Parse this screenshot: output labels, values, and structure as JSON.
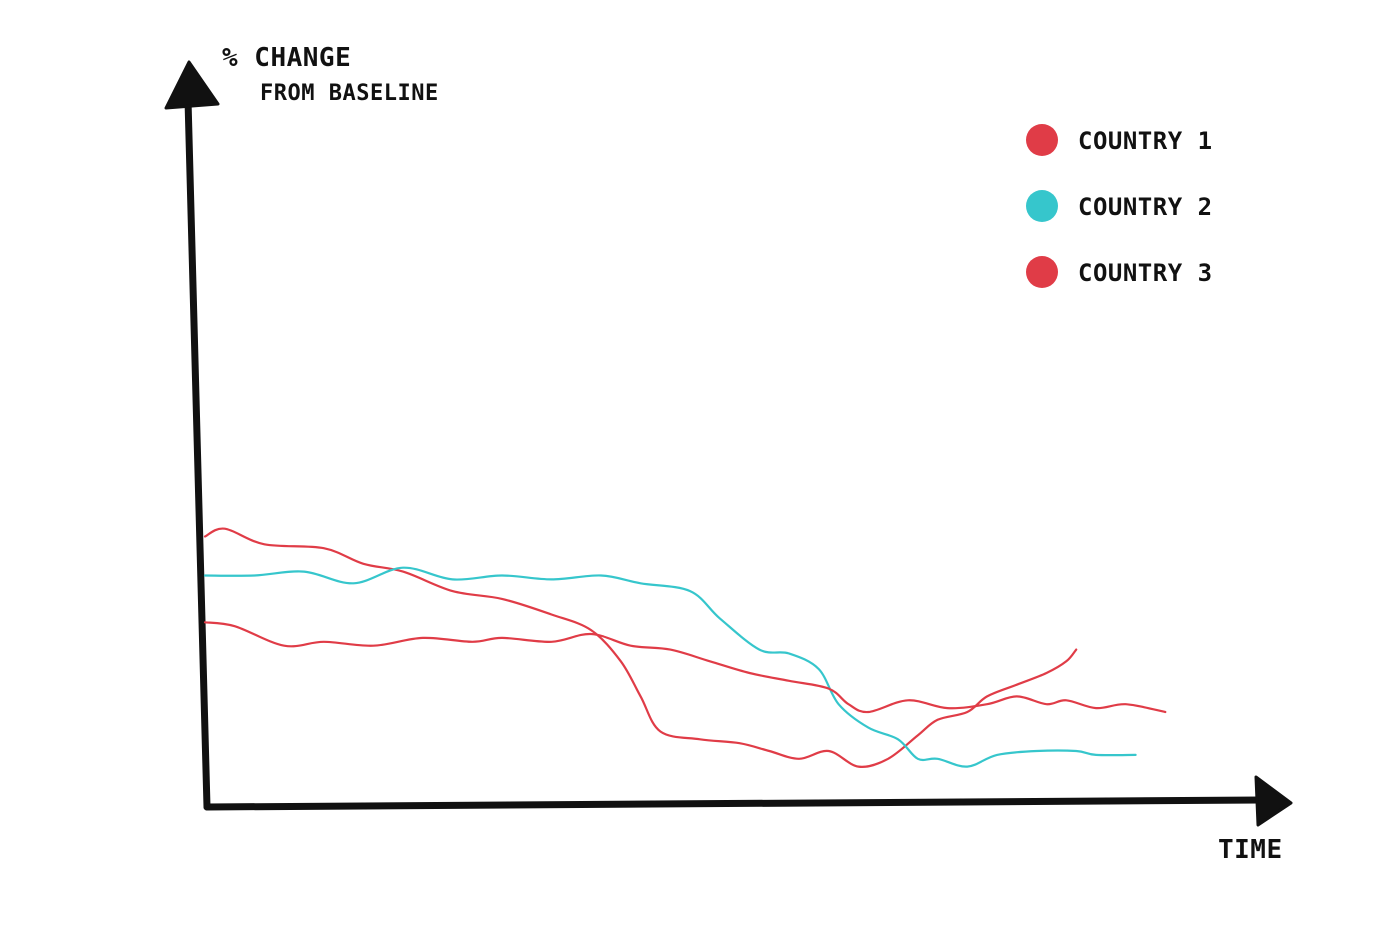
{
  "chart_data": {
    "type": "line",
    "ylabel_line1": "% CHANGE",
    "ylabel_line2": "FROM BASELINE",
    "xlabel": "TIME",
    "ylim": [
      0,
      100
    ],
    "xlim": [
      0,
      100
    ],
    "grid": false,
    "legend_position": "top-right",
    "series": [
      {
        "name": "COUNTRY 1",
        "color": "#e03c47",
        "points": [
          [
            0,
            65
          ],
          [
            2,
            67
          ],
          [
            6,
            63
          ],
          [
            12,
            62
          ],
          [
            16,
            58
          ],
          [
            20,
            56
          ],
          [
            25,
            51
          ],
          [
            30,
            49
          ],
          [
            35,
            45
          ],
          [
            39,
            41
          ],
          [
            42,
            33
          ],
          [
            44,
            24
          ],
          [
            46,
            15
          ],
          [
            50,
            13
          ],
          [
            54,
            12
          ],
          [
            57,
            10
          ],
          [
            60,
            8
          ],
          [
            63,
            10
          ],
          [
            66,
            6
          ],
          [
            69,
            8
          ],
          [
            72,
            14
          ],
          [
            74,
            18
          ],
          [
            77,
            20
          ],
          [
            79,
            24
          ],
          [
            82,
            27
          ],
          [
            85,
            30
          ],
          [
            87,
            33
          ],
          [
            88,
            36
          ]
        ]
      },
      {
        "name": "COUNTRY 2",
        "color": "#36c6cc",
        "points": [
          [
            0,
            55
          ],
          [
            5,
            55
          ],
          [
            10,
            56
          ],
          [
            15,
            53
          ],
          [
            20,
            57
          ],
          [
            25,
            54
          ],
          [
            30,
            55
          ],
          [
            35,
            54
          ],
          [
            40,
            55
          ],
          [
            44,
            53
          ],
          [
            49,
            51
          ],
          [
            52,
            44
          ],
          [
            56,
            36
          ],
          [
            59,
            35
          ],
          [
            62,
            31
          ],
          [
            64,
            22
          ],
          [
            67,
            16
          ],
          [
            70,
            13
          ],
          [
            72,
            8
          ],
          [
            74,
            8
          ],
          [
            77,
            6
          ],
          [
            80,
            9
          ],
          [
            84,
            10
          ],
          [
            88,
            10
          ],
          [
            90,
            9
          ],
          [
            94,
            9
          ]
        ]
      },
      {
        "name": "COUNTRY 3",
        "color": "#e03c47",
        "points": [
          [
            0,
            43
          ],
          [
            3,
            42
          ],
          [
            8,
            37
          ],
          [
            12,
            38
          ],
          [
            17,
            37
          ],
          [
            22,
            39
          ],
          [
            27,
            38
          ],
          [
            30,
            39
          ],
          [
            35,
            38
          ],
          [
            39,
            40
          ],
          [
            43,
            37
          ],
          [
            47,
            36
          ],
          [
            51,
            33
          ],
          [
            55,
            30
          ],
          [
            59,
            28
          ],
          [
            63,
            26
          ],
          [
            65,
            22
          ],
          [
            67,
            20
          ],
          [
            71,
            23
          ],
          [
            75,
            21
          ],
          [
            79,
            22
          ],
          [
            82,
            24
          ],
          [
            85,
            22
          ],
          [
            87,
            23
          ],
          [
            90,
            21
          ],
          [
            93,
            22
          ],
          [
            97,
            20
          ]
        ]
      }
    ]
  }
}
